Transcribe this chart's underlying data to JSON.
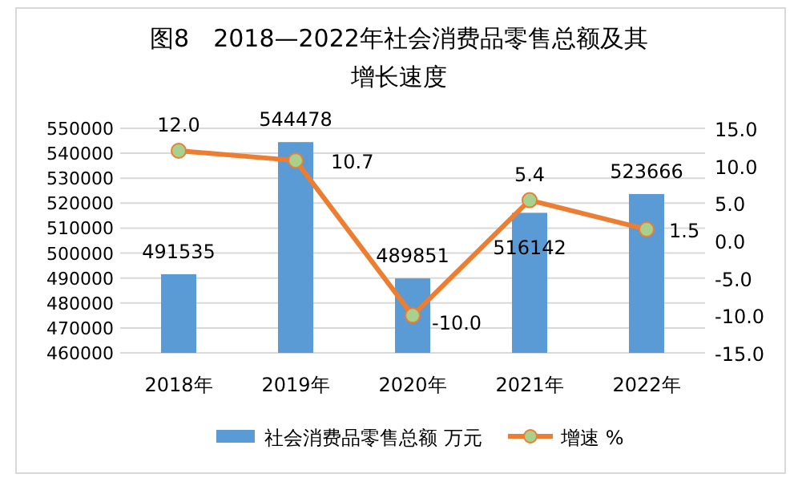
{
  "chart_data": {
    "type": "bar",
    "title": "图8　2018—2022年社会消费品零售总额及其增长速度",
    "categories": [
      "2018年",
      "2019年",
      "2020年",
      "2021年",
      "2022年"
    ],
    "series": [
      {
        "name": "社会消费品零售总额 万元",
        "color": "#5b9bd5",
        "values": [
          491535,
          544478,
          489851,
          516142,
          523666
        ]
      },
      {
        "name": "增速 %",
        "type": "line",
        "axis": "y2",
        "color": "#ed7d31",
        "values": [
          12.0,
          10.7,
          -10.0,
          5.4,
          1.5
        ],
        "value_labels": [
          "12.0",
          "10.7",
          "-10.0",
          "5.4",
          "1.5"
        ]
      }
    ],
    "ylim": [
      460000,
      550000
    ],
    "yticks": [
      460000,
      470000,
      480000,
      490000,
      500000,
      510000,
      520000,
      530000,
      540000,
      550000
    ],
    "y2lim": [
      -15,
      15
    ],
    "y2ticks": [
      {
        "value": -15,
        "label": "-15.0"
      },
      {
        "value": -10,
        "label": "-10.0"
      },
      {
        "value": -5,
        "label": "-5.0"
      },
      {
        "value": 0,
        "label": "0.0"
      },
      {
        "value": 5,
        "label": "5.0"
      },
      {
        "value": 10,
        "label": "10.0"
      },
      {
        "value": 15,
        "label": "15.0"
      }
    ],
    "grid": "y",
    "legend": "bottom",
    "marker": "circle",
    "data_labels": true
  }
}
